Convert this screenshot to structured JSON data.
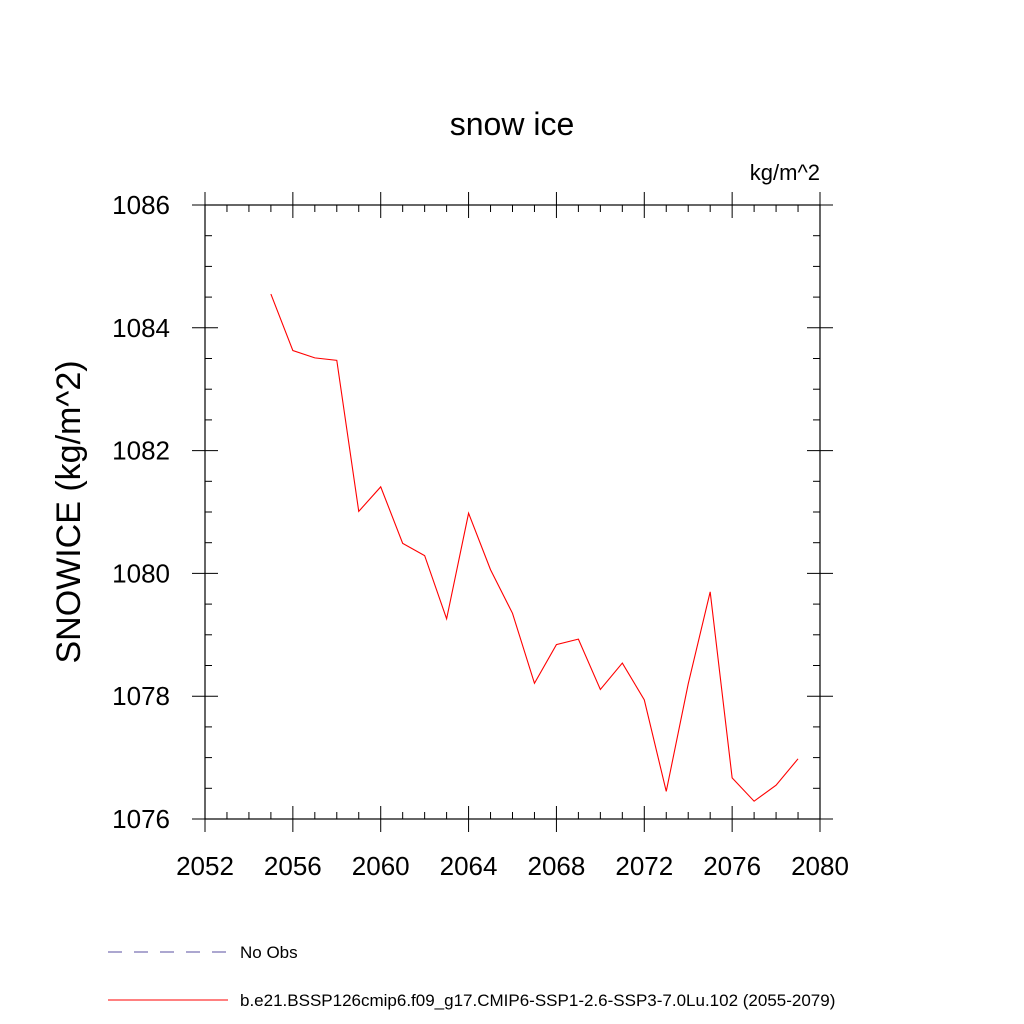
{
  "chart_data": {
    "type": "line",
    "title": "snow ice",
    "units": "kg/m^2",
    "ylabel": "SNOWICE  (kg/m^2)",
    "xlabel": "",
    "xlim": [
      2052,
      2080
    ],
    "ylim": [
      1076,
      1086
    ],
    "x_ticks": [
      2052,
      2056,
      2060,
      2064,
      2068,
      2072,
      2076,
      2080
    ],
    "y_ticks": [
      1076,
      1078,
      1080,
      1082,
      1084,
      1086
    ],
    "x_minor_step": 1,
    "y_minor_step": 0.5,
    "grid": false,
    "legend_position": "bottom",
    "series": [
      {
        "name": "No Obs",
        "color": "#5a4fa0",
        "style": "dashed",
        "x": [],
        "y": []
      },
      {
        "name": "b.e21.BSSP126cmip6.f09_g17.CMIP6-SSP1-2.6-SSP3-7.0Lu.102 (2055-2079)",
        "color": "#ff0000",
        "style": "solid",
        "x": [
          2055,
          2056,
          2057,
          2058,
          2059,
          2060,
          2061,
          2062,
          2063,
          2064,
          2065,
          2066,
          2067,
          2068,
          2069,
          2070,
          2071,
          2072,
          2073,
          2074,
          2075,
          2076,
          2077,
          2078,
          2079
        ],
        "y": [
          1084.55,
          1083.63,
          1083.51,
          1083.47,
          1081.01,
          1081.41,
          1080.49,
          1080.29,
          1079.26,
          1080.98,
          1080.06,
          1079.35,
          1078.21,
          1078.84,
          1078.93,
          1078.11,
          1078.54,
          1077.94,
          1076.45,
          1078.2,
          1079.7,
          1076.67,
          1076.29,
          1076.55,
          1076.98
        ]
      }
    ]
  }
}
